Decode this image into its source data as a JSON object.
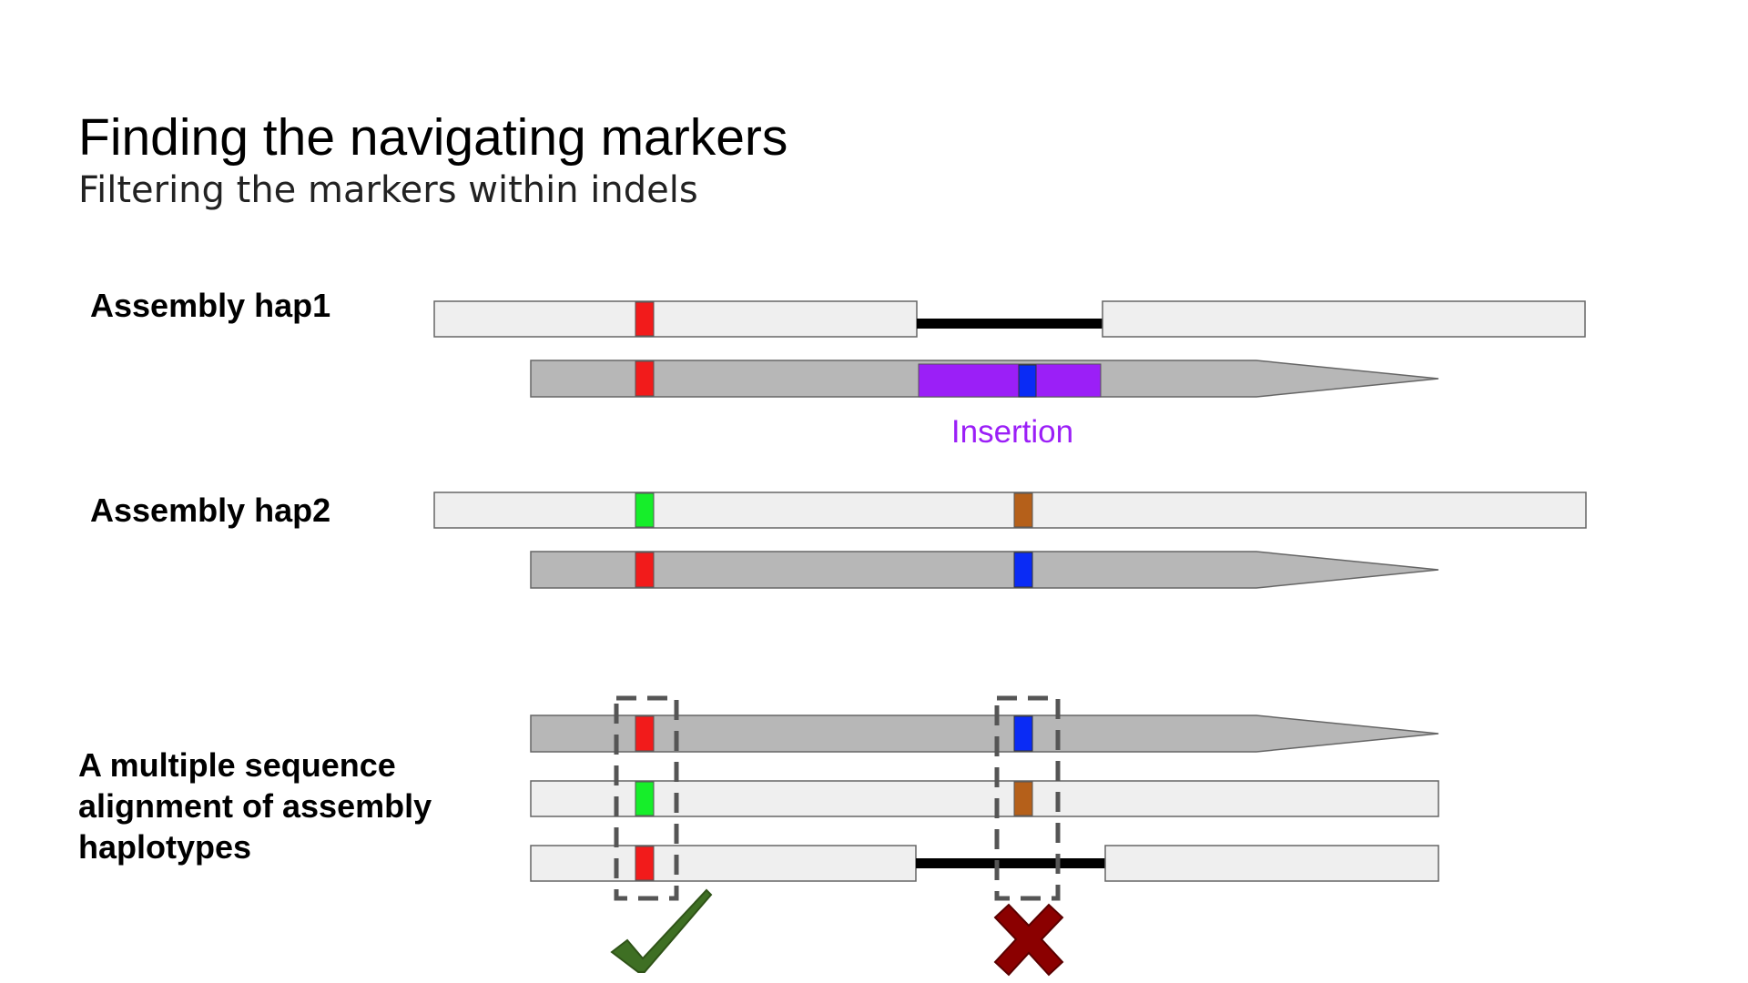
{
  "slide": {
    "title": "Finding the navigating markers",
    "subtitle": "Filtering the markers within indels"
  },
  "labels": {
    "hap1": "Assembly hap1",
    "hap2": "Assembly hap2",
    "msa": "A multiple sequence alignment of assembly haplotypes",
    "insertion": "Insertion"
  },
  "colors": {
    "assembly_bar": "#efefef",
    "read_bar": "#b7b7b7",
    "gap": "#000000",
    "insertion": "#9b1ff7",
    "marker_red": "#f21b1b",
    "marker_blue": "#0a2bf5",
    "marker_green": "#16ee2a",
    "marker_brown": "#b5601a",
    "check": "#3e6f23",
    "cross": "#8b0000"
  },
  "icons": {
    "kept": "check-icon",
    "filtered": "cross-icon"
  }
}
